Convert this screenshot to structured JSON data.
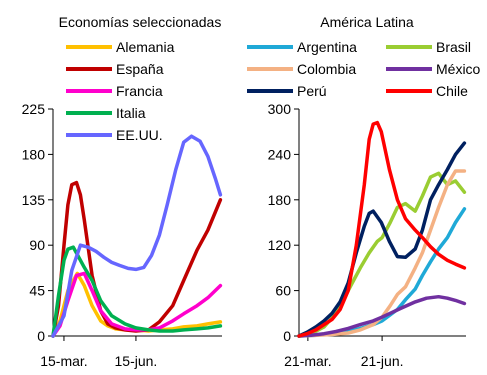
{
  "chart_data": [
    {
      "type": "line",
      "title": "Economías seleccionadas",
      "ylim": [
        0,
        225
      ],
      "yticks": [
        "225",
        "180",
        "135",
        "90",
        "45",
        "0"
      ],
      "xticks": [
        "15-mar.",
        "15-jun."
      ],
      "series": [
        {
          "name": "Alemania",
          "color": "#FFC000",
          "x": [
            "2020-03-01",
            "2020-03-10",
            "2020-03-20",
            "2020-04-01",
            "2020-04-10",
            "2020-04-20",
            "2020-05-01",
            "2020-05-10",
            "2020-05-20",
            "2020-06-01",
            "2020-06-15",
            "2020-07-01",
            "2020-07-15",
            "2020-08-01",
            "2020-08-15",
            "2020-09-01",
            "2020-09-15",
            "2020-10-01"
          ],
          "y": [
            0,
            15,
            45,
            62,
            50,
            30,
            15,
            10,
            7,
            6,
            6,
            5,
            6,
            7,
            9,
            10,
            12,
            14
          ]
        },
        {
          "name": "España",
          "color": "#C00000",
          "x": [
            "2020-03-01",
            "2020-03-08",
            "2020-03-15",
            "2020-03-20",
            "2020-03-25",
            "2020-03-31",
            "2020-04-05",
            "2020-04-10",
            "2020-04-20",
            "2020-05-01",
            "2020-05-10",
            "2020-05-20",
            "2020-06-01",
            "2020-06-15",
            "2020-07-01",
            "2020-07-15",
            "2020-08-01",
            "2020-08-15",
            "2020-09-01",
            "2020-09-15",
            "2020-10-01"
          ],
          "y": [
            0,
            30,
            90,
            130,
            150,
            152,
            140,
            115,
            60,
            25,
            12,
            8,
            6,
            5,
            6,
            14,
            30,
            55,
            85,
            105,
            135
          ]
        },
        {
          "name": "Francia",
          "color": "#FF00CC",
          "x": [
            "2020-03-01",
            "2020-03-10",
            "2020-03-20",
            "2020-03-31",
            "2020-04-10",
            "2020-04-20",
            "2020-05-01",
            "2020-05-15",
            "2020-06-01",
            "2020-06-15",
            "2020-07-01",
            "2020-07-15",
            "2020-08-01",
            "2020-08-15",
            "2020-09-01",
            "2020-09-15",
            "2020-10-01"
          ],
          "y": [
            0,
            10,
            35,
            60,
            62,
            45,
            25,
            12,
            7,
            6,
            6,
            8,
            15,
            22,
            30,
            38,
            50
          ]
        },
        {
          "name": "Italia",
          "color": "#00B050",
          "x": [
            "2020-03-01",
            "2020-03-08",
            "2020-03-15",
            "2020-03-20",
            "2020-03-27",
            "2020-04-03",
            "2020-04-10",
            "2020-04-20",
            "2020-05-01",
            "2020-05-15",
            "2020-06-01",
            "2020-06-15",
            "2020-07-01",
            "2020-07-15",
            "2020-08-01",
            "2020-08-15",
            "2020-09-01",
            "2020-09-15",
            "2020-10-01"
          ],
          "y": [
            0,
            40,
            75,
            86,
            88,
            78,
            68,
            55,
            35,
            20,
            12,
            8,
            6,
            5,
            5,
            6,
            7,
            8,
            10
          ]
        },
        {
          "name": "EE.UU.",
          "color": "#6666FF",
          "x": [
            "2020-03-01",
            "2020-03-15",
            "2020-03-25",
            "2020-04-05",
            "2020-04-15",
            "2020-04-25",
            "2020-05-05",
            "2020-05-15",
            "2020-05-25",
            "2020-06-05",
            "2020-06-15",
            "2020-06-25",
            "2020-07-05",
            "2020-07-15",
            "2020-07-25",
            "2020-08-05",
            "2020-08-15",
            "2020-08-25",
            "2020-09-05",
            "2020-09-15",
            "2020-09-25",
            "2020-10-01"
          ],
          "y": [
            0,
            20,
            65,
            90,
            88,
            84,
            78,
            73,
            70,
            67,
            66,
            68,
            80,
            100,
            130,
            165,
            192,
            198,
            193,
            178,
            155,
            140
          ]
        }
      ]
    },
    {
      "type": "line",
      "title": "América Latina",
      "ylim": [
        0,
        300
      ],
      "yticks": [
        "300",
        "240",
        "180",
        "120",
        "60",
        "0"
      ],
      "xticks": [
        "21-mar.",
        "21-jun."
      ],
      "series": [
        {
          "name": "Argentina",
          "color": "#1FA9D7",
          "x": [
            "2020-03-10",
            "2020-04-01",
            "2020-04-20",
            "2020-05-10",
            "2020-05-25",
            "2020-06-10",
            "2020-06-21",
            "2020-07-01",
            "2020-07-10",
            "2020-07-20",
            "2020-08-01",
            "2020-08-10",
            "2020-08-20",
            "2020-08-30",
            "2020-09-10",
            "2020-09-20",
            "2020-10-01"
          ],
          "y": [
            0,
            1,
            3,
            6,
            10,
            15,
            20,
            28,
            35,
            48,
            62,
            80,
            98,
            115,
            130,
            150,
            168
          ]
        },
        {
          "name": "Brasil",
          "color": "#9ACD32",
          "x": [
            "2020-03-10",
            "2020-03-25",
            "2020-04-10",
            "2020-04-25",
            "2020-05-05",
            "2020-05-15",
            "2020-05-25",
            "2020-06-05",
            "2020-06-15",
            "2020-06-21",
            "2020-07-01",
            "2020-07-10",
            "2020-07-20",
            "2020-08-01",
            "2020-08-10",
            "2020-08-20",
            "2020-08-30",
            "2020-09-10",
            "2020-09-20",
            "2020-10-01"
          ],
          "y": [
            0,
            3,
            12,
            30,
            50,
            70,
            90,
            110,
            125,
            130,
            150,
            170,
            175,
            165,
            185,
            210,
            215,
            200,
            205,
            190
          ]
        },
        {
          "name": "Colombia",
          "color": "#F4B183",
          "x": [
            "2020-03-10",
            "2020-04-01",
            "2020-04-20",
            "2020-05-10",
            "2020-05-25",
            "2020-06-10",
            "2020-06-21",
            "2020-07-01",
            "2020-07-10",
            "2020-07-20",
            "2020-08-01",
            "2020-08-10",
            "2020-08-20",
            "2020-08-30",
            "2020-09-10",
            "2020-09-20",
            "2020-10-01"
          ],
          "y": [
            0,
            1,
            2,
            4,
            8,
            15,
            25,
            40,
            55,
            65,
            90,
            110,
            140,
            170,
            200,
            218,
            218
          ]
        },
        {
          "name": "México",
          "color": "#7030A0",
          "x": [
            "2020-03-10",
            "2020-03-25",
            "2020-04-10",
            "2020-04-25",
            "2020-05-10",
            "2020-05-25",
            "2020-06-10",
            "2020-06-21",
            "2020-07-01",
            "2020-07-15",
            "2020-08-01",
            "2020-08-15",
            "2020-08-30",
            "2020-09-10",
            "2020-09-20",
            "2020-10-01"
          ],
          "y": [
            0,
            1,
            3,
            6,
            10,
            15,
            20,
            25,
            30,
            37,
            45,
            50,
            52,
            50,
            47,
            43
          ]
        },
        {
          "name": "Perú",
          "color": "#002060",
          "x": [
            "2020-03-10",
            "2020-03-20",
            "2020-03-31",
            "2020-04-10",
            "2020-04-20",
            "2020-04-30",
            "2020-05-10",
            "2020-05-20",
            "2020-05-30",
            "2020-06-05",
            "2020-06-10",
            "2020-06-20",
            "2020-06-30",
            "2020-07-10",
            "2020-07-20",
            "2020-08-01",
            "2020-08-10",
            "2020-08-20",
            "2020-08-30",
            "2020-09-10",
            "2020-09-20",
            "2020-10-01"
          ],
          "y": [
            0,
            5,
            12,
            20,
            30,
            45,
            70,
            110,
            145,
            162,
            165,
            150,
            125,
            105,
            104,
            115,
            140,
            180,
            200,
            220,
            240,
            255
          ]
        },
        {
          "name": "Chile",
          "color": "#FF0000",
          "x": [
            "2020-03-10",
            "2020-03-20",
            "2020-03-31",
            "2020-04-10",
            "2020-04-20",
            "2020-04-30",
            "2020-05-10",
            "2020-05-20",
            "2020-05-30",
            "2020-06-05",
            "2020-06-10",
            "2020-06-15",
            "2020-06-20",
            "2020-06-30",
            "2020-07-10",
            "2020-07-20",
            "2020-08-01",
            "2020-08-10",
            "2020-08-20",
            "2020-08-30",
            "2020-09-10",
            "2020-09-20",
            "2020-10-01"
          ],
          "y": [
            0,
            3,
            8,
            15,
            22,
            35,
            60,
            120,
            200,
            260,
            280,
            282,
            270,
            220,
            180,
            155,
            140,
            130,
            118,
            108,
            100,
            95,
            90
          ]
        }
      ]
    }
  ]
}
